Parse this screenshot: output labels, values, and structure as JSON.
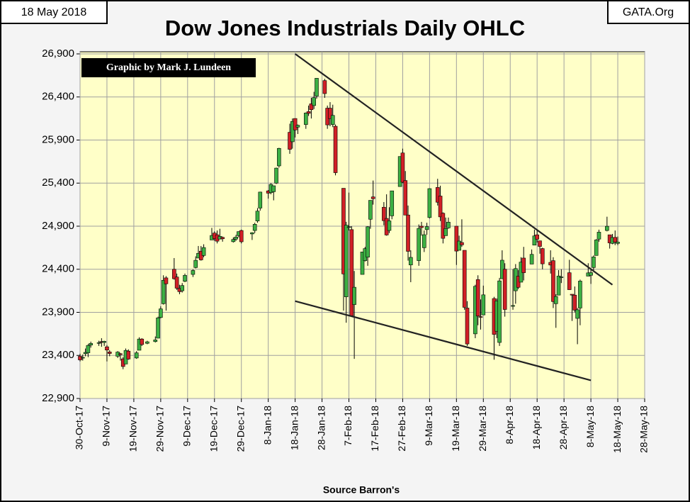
{
  "chart_data": {
    "type": "candlestick",
    "title": "Dow Jones Industrials Daily OHLC",
    "date_label": "18 May 2018",
    "source_label": "GATA.Org",
    "credit": "Graphic by Mark J. Lundeen",
    "xlabel": "Source Barron's",
    "up_color": "#3cb043",
    "down_color": "#d11f26",
    "grid": true,
    "x": [
      "30-Oct-17",
      "31-Oct-17",
      "1-Nov-17",
      "2-Nov-17",
      "3-Nov-17",
      "6-Nov-17",
      "7-Nov-17",
      "8-Nov-17",
      "9-Nov-17",
      "10-Nov-17",
      "13-Nov-17",
      "14-Nov-17",
      "15-Nov-17",
      "16-Nov-17",
      "17-Nov-17",
      "20-Nov-17",
      "21-Nov-17",
      "22-Nov-17",
      "24-Nov-17",
      "27-Nov-17",
      "28-Nov-17",
      "29-Nov-17",
      "30-Nov-17",
      "1-Dec-17",
      "4-Dec-17",
      "5-Dec-17",
      "6-Dec-17",
      "7-Dec-17",
      "8-Dec-17",
      "11-Dec-17",
      "12-Dec-17",
      "13-Dec-17",
      "14-Dec-17",
      "15-Dec-17",
      "18-Dec-17",
      "19-Dec-17",
      "20-Dec-17",
      "21-Dec-17",
      "22-Dec-17",
      "26-Dec-17",
      "27-Dec-17",
      "28-Dec-17",
      "29-Dec-17",
      "2-Jan-18",
      "3-Jan-18",
      "4-Jan-18",
      "5-Jan-18",
      "8-Jan-18",
      "9-Jan-18",
      "10-Jan-18",
      "11-Jan-18",
      "12-Jan-18",
      "16-Jan-18",
      "17-Jan-18",
      "18-Jan-18",
      "19-Jan-18",
      "22-Jan-18",
      "23-Jan-18",
      "24-Jan-18",
      "25-Jan-18",
      "26-Jan-18",
      "29-Jan-18",
      "30-Jan-18",
      "31-Jan-18",
      "1-Feb-18",
      "2-Feb-18",
      "5-Feb-18",
      "6-Feb-18",
      "7-Feb-18",
      "8-Feb-18",
      "9-Feb-18",
      "12-Feb-18",
      "13-Feb-18",
      "14-Feb-18",
      "15-Feb-18",
      "16-Feb-18",
      "20-Feb-18",
      "21-Feb-18",
      "22-Feb-18",
      "23-Feb-18",
      "26-Feb-18",
      "27-Feb-18",
      "28-Feb-18",
      "1-Mar-18",
      "2-Mar-18",
      "5-Mar-18",
      "6-Mar-18",
      "7-Mar-18",
      "8-Mar-18",
      "9-Mar-18",
      "12-Mar-18",
      "13-Mar-18",
      "14-Mar-18",
      "15-Mar-18",
      "16-Mar-18",
      "19-Mar-18",
      "20-Mar-18",
      "21-Mar-18",
      "22-Mar-18",
      "23-Mar-18",
      "26-Mar-18",
      "27-Mar-18",
      "28-Mar-18",
      "29-Mar-18",
      "2-Apr-18",
      "3-Apr-18",
      "4-Apr-18",
      "5-Apr-18",
      "6-Apr-18",
      "9-Apr-18",
      "10-Apr-18",
      "11-Apr-18",
      "12-Apr-18",
      "13-Apr-18",
      "16-Apr-18",
      "17-Apr-18",
      "18-Apr-18",
      "19-Apr-18",
      "20-Apr-18",
      "23-Apr-18",
      "24-Apr-18",
      "25-Apr-18",
      "26-Apr-18",
      "27-Apr-18",
      "30-Apr-18",
      "1-May-18",
      "2-May-18",
      "3-May-18",
      "4-May-18",
      "7-May-18",
      "8-May-18",
      "9-May-18",
      "10-May-18",
      "11-May-18",
      "14-May-18",
      "15-May-18",
      "16-May-18",
      "17-May-18",
      "18-May-18"
    ],
    "open": [
      23390,
      23370,
      23420,
      23430,
      23520,
      23540,
      23560,
      23550,
      23500,
      23440,
      23390,
      23420,
      23360,
      23300,
      23450,
      23370,
      23460,
      23590,
      23540,
      23560,
      23600,
      23840,
      24000,
      24300,
      24400,
      24310,
      24180,
      24150,
      24260,
      24340,
      24420,
      24530,
      24610,
      24560,
      24740,
      24820,
      24800,
      24750,
      24770,
      24720,
      24750,
      24790,
      24850,
      24810,
      24850,
      24960,
      25110,
      25310,
      25290,
      25300,
      25400,
      25600,
      25990,
      25880,
      26150,
      26050,
      26080,
      26230,
      26320,
      26300,
      26410,
      26590,
      26270,
      26270,
      26080,
      26060,
      25340,
      24080,
      24890,
      24860,
      23990,
      24340,
      24500,
      24540,
      24980,
      25240,
      25120,
      24990,
      24850,
      25020,
      25360,
      25750,
      25430,
      25030,
      24450,
      24500,
      24900,
      24650,
      24860,
      25000,
      25350,
      25250,
      25050,
      24790,
      24880,
      24900,
      24620,
      24710,
      24620,
      23950,
      23650,
      24280,
      23850,
      23870,
      24060,
      23680,
      23550,
      24290,
      24400,
      23970,
      24150,
      24320,
      24250,
      24530,
      24460,
      24680,
      24800,
      24730,
      24640,
      24480,
      24500,
      24000,
      24100,
      24310,
      24360,
      24110,
      24100,
      23830,
      23950,
      24320,
      24330,
      24420,
      24560,
      24750,
      24850,
      24800,
      24700,
      24770,
      24700
    ],
    "high": [
      23420,
      23410,
      23480,
      23530,
      23560,
      23570,
      23600,
      23570,
      23520,
      23460,
      23450,
      23430,
      23380,
      23480,
      23470,
      23450,
      23610,
      23600,
      23570,
      23620,
      23850,
      23970,
      24330,
      24320,
      24530,
      24350,
      24220,
      24240,
      24350,
      24400,
      24550,
      24670,
      24670,
      24690,
      24880,
      24840,
      24850,
      24870,
      24780,
      24770,
      24800,
      24840,
      24860,
      24830,
      24940,
      25110,
      25300,
      25320,
      25400,
      25370,
      25580,
      25810,
      26090,
      26150,
      26150,
      26080,
      26220,
      26300,
      26390,
      26460,
      26620,
      26610,
      26300,
      26340,
      26310,
      26080,
      25340,
      24950,
      25290,
      24900,
      24380,
      24600,
      24660,
      24900,
      25200,
      25430,
      25180,
      25270,
      25120,
      25310,
      25710,
      25800,
      25540,
      25140,
      24620,
      24920,
      24950,
      24850,
      24940,
      25340,
      25450,
      25370,
      25060,
      25000,
      25000,
      24900,
      24790,
      24980,
      24620,
      24030,
      24220,
      24330,
      24050,
      24210,
      24080,
      24060,
      24300,
      24620,
      24470,
      24400,
      24460,
      24390,
      24540,
      24660,
      24630,
      24860,
      24860,
      24730,
      24650,
      24620,
      24540,
      24110,
      24390,
      24400,
      24510,
      24110,
      24200,
      23950,
      24280,
      24470,
      24400,
      24560,
      24750,
      24860,
      25010,
      24800,
      24810,
      24850,
      24780
    ],
    "low": [
      23330,
      23340,
      23390,
      23380,
      23490,
      23510,
      23500,
      23510,
      23330,
      23390,
      23370,
      23340,
      23240,
      23300,
      23350,
      23360,
      23460,
      23510,
      23530,
      23550,
      23600,
      23830,
      23990,
      23920,
      24280,
      24160,
      24110,
      24130,
      24250,
      24310,
      24410,
      24530,
      24500,
      24540,
      24740,
      24730,
      24700,
      24750,
      24720,
      24710,
      24730,
      24770,
      24700,
      24740,
      24820,
      24940,
      25080,
      25220,
      25270,
      25200,
      25390,
      25580,
      25740,
      25800,
      25930,
      25970,
      26030,
      26180,
      26150,
      26260,
      26380,
      26390,
      26030,
      26060,
      26050,
      25490,
      23920,
      23780,
      24850,
      23850,
      23360,
      24340,
      24490,
      24440,
      24870,
      25150,
      24910,
      24790,
      24820,
      24980,
      25360,
      25400,
      25030,
      24500,
      24250,
      24440,
      24790,
      24600,
      24800,
      24990,
      25140,
      24960,
      24700,
      24790,
      24870,
      24450,
      24620,
      24660,
      23930,
      23510,
      23600,
      23750,
      23700,
      23870,
      23350,
      23600,
      23510,
      24290,
      23850,
      23930,
      24000,
      24170,
      24250,
      24270,
      24460,
      24680,
      24710,
      24580,
      24400,
      24350,
      23950,
      23720,
      24100,
      24240,
      24160,
      23800,
      23900,
      23530,
      23750,
      24320,
      24230,
      24370,
      24560,
      24720,
      24840,
      24640,
      24690,
      24680,
      24680
    ],
    "close": [
      23348,
      23377,
      23435,
      23516,
      23539,
      23548,
      23557,
      23563,
      23462,
      23422,
      23439,
      23409,
      23271,
      23458,
      23358,
      23430,
      23590,
      23526,
      23558,
      23580,
      23836,
      23940,
      24272,
      24231,
      24290,
      24180,
      24140,
      24211,
      24329,
      24386,
      24504,
      24585,
      24509,
      24652,
      24792,
      24754,
      24726,
      24782,
      24754,
      24746,
      24774,
      24837,
      24719,
      24824,
      24922,
      25075,
      25296,
      25283,
      25385,
      25369,
      25574,
      25803,
      25792,
      26116,
      26017,
      26071,
      26214,
      26210,
      26252,
      26392,
      26617,
      26439,
      26076,
      26149,
      26186,
      25521,
      24346,
      24912,
      24893,
      23860,
      24191,
      24601,
      24640,
      24893,
      25200,
      25219,
      24964,
      24798,
      24962,
      25310,
      25709,
      25410,
      25029,
      24608,
      24538,
      24874,
      24884,
      24801,
      24895,
      25336,
      25178,
      25008,
      24759,
      24873,
      24947,
      24611,
      24727,
      24683,
      23958,
      23533,
      24202,
      23857,
      23849,
      24103,
      23644,
      24033,
      24265,
      24505,
      23933,
      23979,
      24408,
      24190,
      24483,
      24360,
      24573,
      24787,
      24748,
      24665,
      24463,
      24449,
      24025,
      24084,
      24322,
      24311,
      24163,
      24100,
      23925,
      23930,
      24263,
      24358,
      24361,
      24543,
      24740,
      24831,
      24899,
      24706,
      24769,
      24714,
      24715
    ],
    "xlim": [
      "30-Oct-17",
      "28-May-18"
    ],
    "xticks": [
      "30-Oct-17",
      "9-Nov-17",
      "19-Nov-17",
      "29-Nov-17",
      "9-Dec-17",
      "19-Dec-17",
      "29-Dec-17",
      "8-Jan-18",
      "18-Jan-18",
      "28-Jan-18",
      "7-Feb-18",
      "17-Feb-18",
      "27-Feb-18",
      "9-Mar-18",
      "19-Mar-18",
      "29-Mar-18",
      "8-Apr-18",
      "18-Apr-18",
      "28-Apr-18",
      "8-May-18",
      "18-May-18",
      "28-May-18"
    ],
    "ylim": [
      22900,
      26900
    ],
    "yticks": [
      {
        "value": 22900,
        "label": "22,900"
      },
      {
        "value": 23400,
        "label": "23,400"
      },
      {
        "value": 23900,
        "label": "23,900"
      },
      {
        "value": 24400,
        "label": "24,400"
      },
      {
        "value": 24900,
        "label": "24,900"
      },
      {
        "value": 25400,
        "label": "25,400"
      },
      {
        "value": 25900,
        "label": "25,900"
      },
      {
        "value": 26400,
        "label": "26,400"
      },
      {
        "value": 26900,
        "label": "26,900"
      }
    ],
    "trendlines": [
      {
        "x": [
          "18-Jan-18",
          "16-May-18"
        ],
        "y": [
          26900,
          24220
        ]
      },
      {
        "x": [
          "18-Jan-18",
          "8-May-18"
        ],
        "y": [
          24030,
          23110
        ]
      }
    ]
  }
}
